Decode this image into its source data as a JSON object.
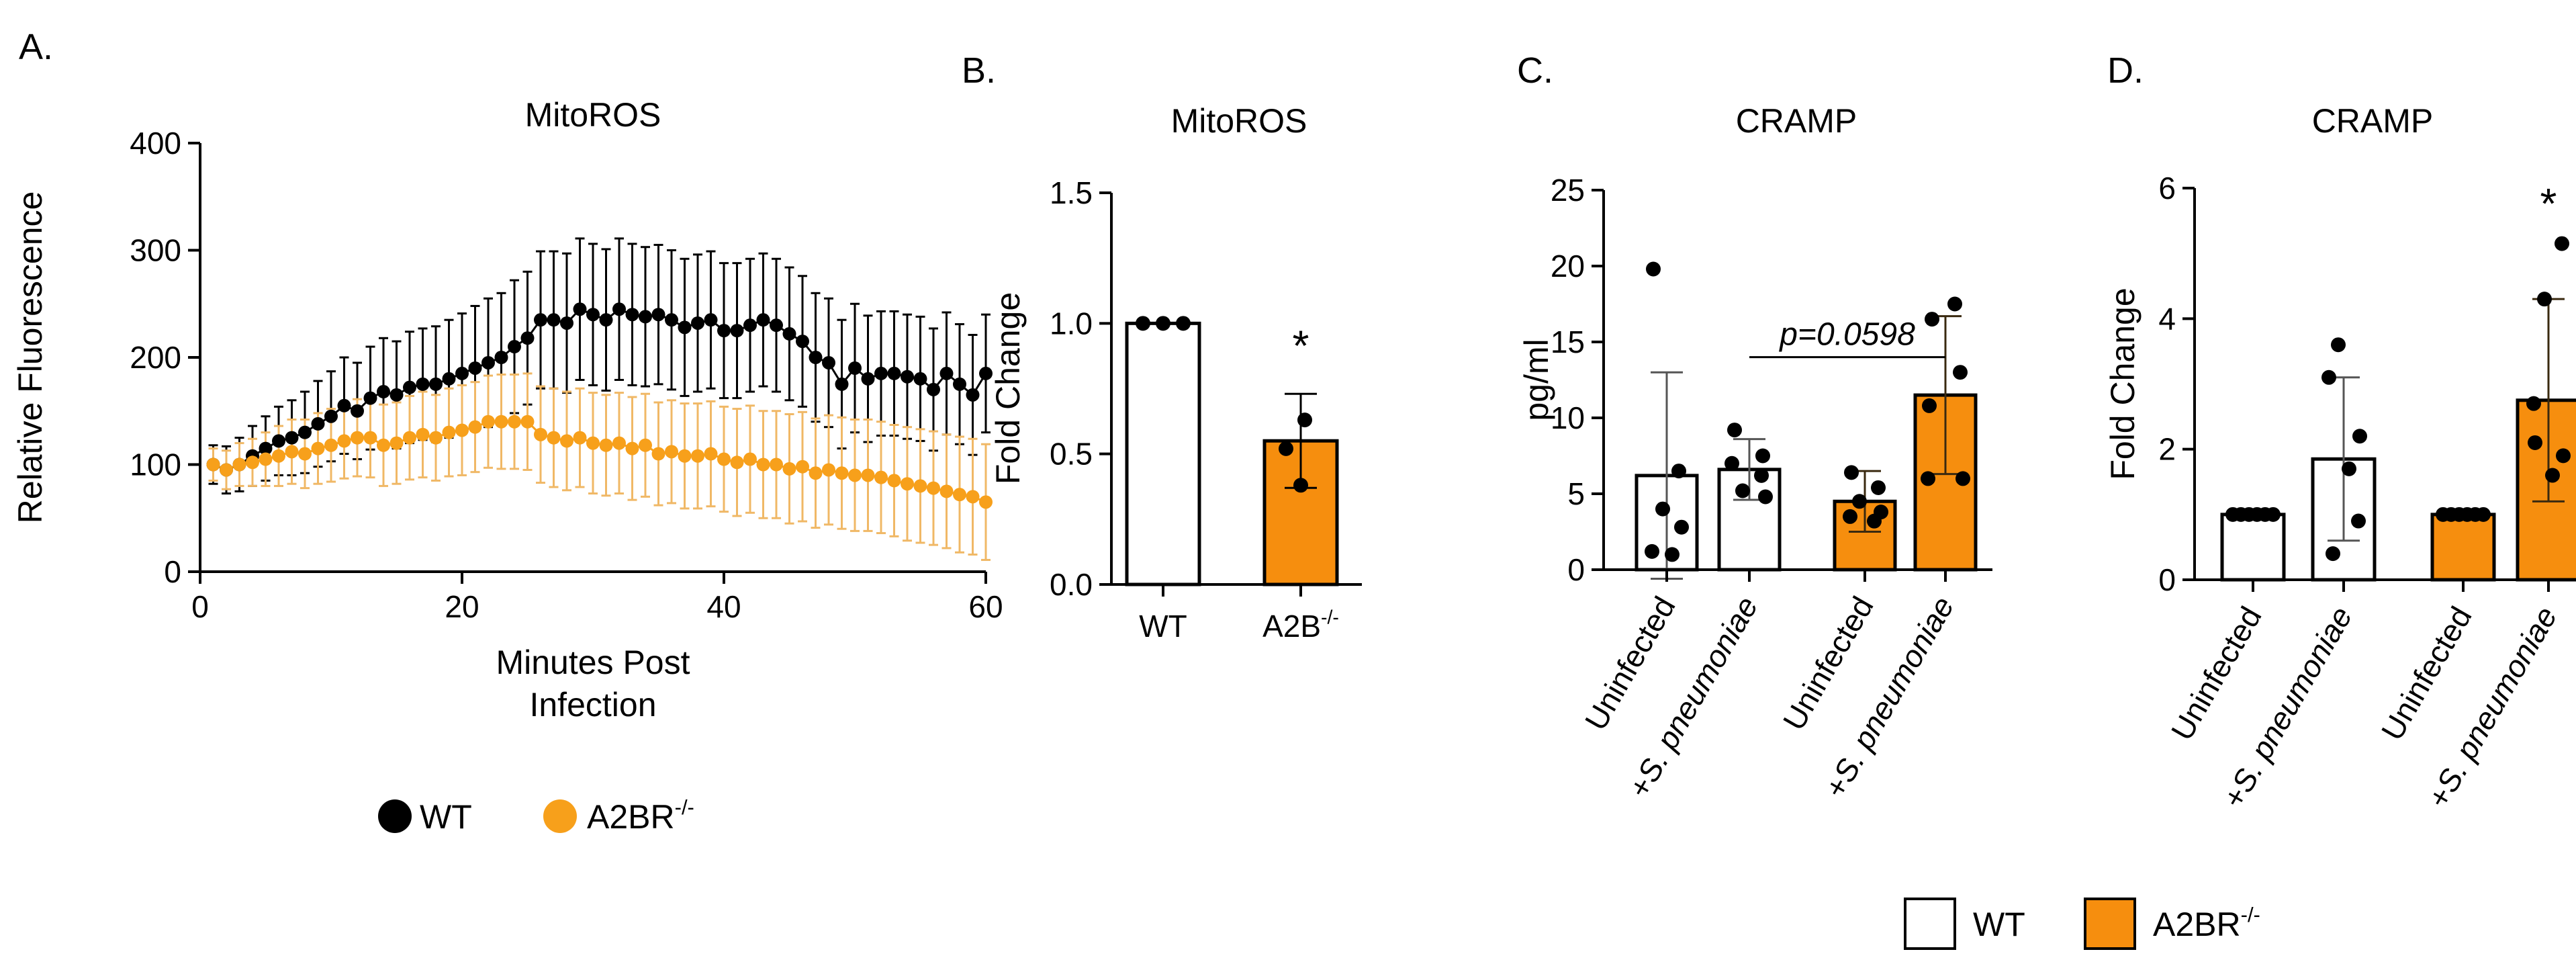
{
  "colors": {
    "wt": "#000000",
    "ko": "#F7A01B",
    "bar_ko": "#F68E0E",
    "error_ko": "#F0B866",
    "axis": "#000000"
  },
  "chart_data": [
    {
      "panel": "A.",
      "type": "line",
      "title": "MitoROS",
      "xlabel": "Minutes Post Infection",
      "xlabel_lines": [
        "Minutes Post",
        "Infection"
      ],
      "ylabel": "Relative Fluorescence",
      "xlim": [
        0,
        60
      ],
      "ylim": [
        0,
        400
      ],
      "xticks": [
        "0",
        "20",
        "40",
        "60"
      ],
      "yticks": [
        "0",
        "100",
        "200",
        "300",
        "400"
      ],
      "legend": [
        {
          "label": "WT",
          "sup": "",
          "color": "#000000"
        },
        {
          "label": "A2BR",
          "sup": "-/-",
          "color": "#F7A01B"
        }
      ],
      "series": [
        {
          "name": "WT",
          "x": [
            1,
            2,
            3,
            4,
            5,
            6,
            7,
            8,
            9,
            10,
            11,
            12,
            13,
            14,
            15,
            16,
            17,
            18,
            19,
            20,
            21,
            22,
            23,
            24,
            25,
            26,
            27,
            28,
            29,
            30,
            31,
            32,
            33,
            34,
            35,
            36,
            37,
            38,
            39,
            40,
            41,
            42,
            43,
            44,
            45,
            46,
            47,
            48,
            49,
            50,
            51,
            52,
            53,
            54,
            55,
            56,
            57,
            58,
            59,
            60
          ],
          "y": [
            100,
            95,
            100,
            108,
            115,
            122,
            125,
            130,
            138,
            145,
            155,
            150,
            162,
            168,
            165,
            172,
            175,
            175,
            180,
            185,
            190,
            195,
            200,
            210,
            218,
            235,
            235,
            232,
            245,
            240,
            235,
            245,
            240,
            238,
            240,
            235,
            228,
            232,
            235,
            225,
            225,
            230,
            235,
            230,
            222,
            215,
            200,
            195,
            175,
            190,
            180,
            185,
            185,
            182,
            180,
            170,
            185,
            175,
            165,
            185
          ],
          "err": [
            18,
            22,
            25,
            28,
            30,
            32,
            35,
            38,
            40,
            42,
            45,
            45,
            48,
            50,
            50,
            52,
            52,
            54,
            55,
            56,
            58,
            60,
            60,
            62,
            62,
            64,
            64,
            65,
            66,
            66,
            66,
            66,
            66,
            65,
            65,
            65,
            64,
            64,
            64,
            63,
            63,
            62,
            62,
            62,
            62,
            61,
            60,
            60,
            60,
            60,
            59,
            58,
            58,
            58,
            58,
            57,
            57,
            56,
            56,
            55
          ]
        },
        {
          "name": "A2BR-/-",
          "x": [
            1,
            2,
            3,
            4,
            5,
            6,
            7,
            8,
            9,
            10,
            11,
            12,
            13,
            14,
            15,
            16,
            17,
            18,
            19,
            20,
            21,
            22,
            23,
            24,
            25,
            26,
            27,
            28,
            29,
            30,
            31,
            32,
            33,
            34,
            35,
            36,
            37,
            38,
            39,
            40,
            41,
            42,
            43,
            44,
            45,
            46,
            47,
            48,
            49,
            50,
            51,
            52,
            53,
            54,
            55,
            56,
            57,
            58,
            59,
            60
          ],
          "y": [
            100,
            95,
            100,
            102,
            105,
            108,
            112,
            110,
            115,
            118,
            122,
            125,
            125,
            118,
            120,
            125,
            128,
            125,
            130,
            132,
            135,
            140,
            140,
            140,
            140,
            128,
            125,
            122,
            125,
            120,
            118,
            120,
            115,
            118,
            110,
            112,
            108,
            108,
            110,
            105,
            102,
            105,
            100,
            100,
            96,
            98,
            92,
            95,
            92,
            90,
            90,
            88,
            85,
            82,
            80,
            78,
            75,
            72,
            70,
            65
          ],
          "err": [
            15,
            18,
            20,
            22,
            25,
            28,
            30,
            32,
            33,
            34,
            35,
            36,
            37,
            38,
            38,
            39,
            40,
            40,
            41,
            42,
            42,
            43,
            44,
            44,
            45,
            45,
            46,
            46,
            46,
            47,
            47,
            47,
            48,
            48,
            48,
            48,
            49,
            49,
            49,
            49,
            50,
            50,
            50,
            50,
            51,
            51,
            51,
            51,
            52,
            52,
            52,
            52,
            52,
            53,
            53,
            53,
            53,
            54,
            54,
            54
          ]
        }
      ]
    },
    {
      "panel": "B.",
      "type": "bar",
      "title": "MitoROS",
      "ylabel": "Fold Change",
      "ylim": [
        0,
        1.5
      ],
      "yticks": [
        "0.0",
        "0.5",
        "1.0",
        "1.5"
      ],
      "categories": [
        {
          "label": "WT",
          "sup": ""
        },
        {
          "label": "A2B",
          "sup": "-/-"
        }
      ],
      "values": [
        1.0,
        0.55
      ],
      "errors": [
        0.0,
        0.18
      ],
      "points": [
        [
          1.0,
          1.0,
          1.0
        ],
        [
          0.63,
          0.52,
          0.38
        ]
      ],
      "fills": [
        "#FFFFFF",
        "#F68E0E"
      ],
      "annotations": [
        {
          "text": "*",
          "category": 1
        }
      ]
    },
    {
      "panel": "C.",
      "type": "bar",
      "title": "CRAMP",
      "ylabel": "pg/ml",
      "ylim": [
        0,
        25
      ],
      "yticks": [
        "0",
        "5",
        "10",
        "15",
        "20",
        "25"
      ],
      "categories": [
        "Uninfected",
        "+S. pneumoniae",
        "Uninfected",
        "+S. pneumoniae"
      ],
      "category_parts": [
        {
          "plain": "Uninfected",
          "italic": ""
        },
        {
          "plain": "+",
          "italic": "S. pneumoniae"
        },
        {
          "plain": "Uninfected",
          "italic": ""
        },
        {
          "plain": "+",
          "italic": "S. pneumoniae"
        }
      ],
      "values": [
        6.2,
        6.6,
        4.5,
        11.5
      ],
      "errors": [
        6.8,
        2.0,
        2.0,
        5.2
      ],
      "points": [
        [
          19.8,
          6.5,
          4.0,
          2.8,
          1.2,
          1.0
        ],
        [
          9.2,
          7.5,
          7.0,
          6.2,
          5.2,
          4.8
        ],
        [
          6.4,
          5.4,
          4.5,
          3.8,
          3.5,
          3.2
        ],
        [
          17.5,
          16.5,
          13.0,
          10.8,
          6.0,
          6.0
        ]
      ],
      "fills": [
        "#FFFFFF",
        "#FFFFFF",
        "#F68E0E",
        "#F68E0E"
      ],
      "annotations": [
        {
          "text": "p=0.0598",
          "from": 1,
          "to": 3,
          "y": 14
        }
      ]
    },
    {
      "panel": "D.",
      "type": "bar",
      "title": "CRAMP",
      "ylabel": "Fold Change",
      "ylim": [
        0,
        6
      ],
      "yticks": [
        "0",
        "2",
        "4",
        "6"
      ],
      "categories": [
        "Uninfected",
        "+S. pneumoniae",
        "Uninfected",
        "+S. pneumoniae"
      ],
      "category_parts": [
        {
          "plain": "Uninfected",
          "italic": ""
        },
        {
          "plain": "+",
          "italic": "S. pneumoniae"
        },
        {
          "plain": "Uninfected",
          "italic": ""
        },
        {
          "plain": "+",
          "italic": "S. pneumoniae"
        }
      ],
      "values": [
        1.0,
        1.85,
        1.0,
        2.75
      ],
      "errors": [
        0.0,
        1.25,
        0.0,
        1.55
      ],
      "points": [
        [
          1.0,
          1.0,
          1.0,
          1.0,
          1.0,
          1.0
        ],
        [
          3.6,
          3.1,
          2.2,
          1.7,
          0.9,
          0.4
        ],
        [
          1.0,
          1.0,
          1.0,
          1.0,
          1.0,
          1.0
        ],
        [
          5.15,
          4.3,
          2.7,
          2.1,
          1.9,
          1.6
        ]
      ],
      "fills": [
        "#FFFFFF",
        "#FFFFFF",
        "#F68E0E",
        "#F68E0E"
      ],
      "annotations": [
        {
          "text": "*",
          "category": 3
        }
      ]
    }
  ],
  "shared_legend": [
    {
      "label": "WT",
      "sup": "",
      "fill": "#FFFFFF"
    },
    {
      "label": "A2BR",
      "sup": "-/-",
      "fill": "#F68E0E"
    }
  ]
}
